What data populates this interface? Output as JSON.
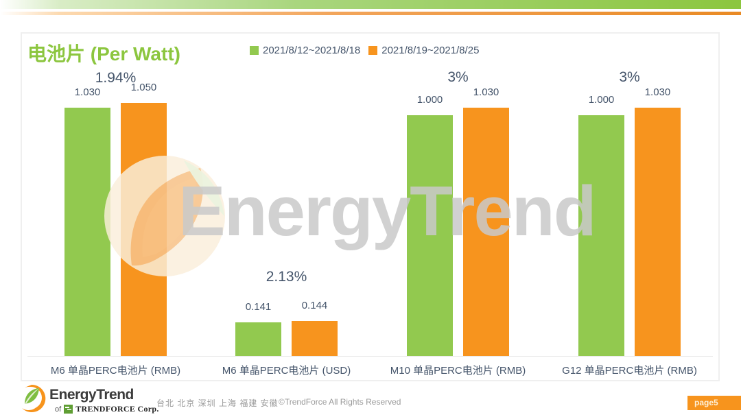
{
  "header": {
    "title": "电池片 (Per Watt)"
  },
  "legend": [
    {
      "label": "2021/8/12~2021/8/18",
      "color": "#92c94f"
    },
    {
      "label": "2021/8/19~2021/8/25",
      "color": "#f7941e"
    }
  ],
  "chart_data": {
    "type": "bar",
    "title": "电池片 (Per Watt)",
    "categories": [
      "M6 单晶PERC电池片 (RMB)",
      "M6 单晶PERC电池片 (USD)",
      "M10 单晶PERC电池片 (RMB)",
      "G12 单晶PERC电池片 (RMB)"
    ],
    "series": [
      {
        "name": "2021/8/12~2021/8/18",
        "color": "#92c94f",
        "values": [
          1.03,
          0.141,
          1.0,
          1.0
        ]
      },
      {
        "name": "2021/8/19~2021/8/25",
        "color": "#f7941e",
        "values": [
          1.05,
          0.144,
          1.03,
          1.03
        ]
      }
    ],
    "value_labels": [
      [
        "1.030",
        "0.141",
        "1.000",
        "1.000"
      ],
      [
        "1.050",
        "0.144",
        "1.030",
        "1.030"
      ]
    ],
    "change_labels": [
      "1.94%",
      "2.13%",
      "3%",
      "3%"
    ],
    "ylim": [
      0,
      1.1
    ],
    "grid": false,
    "legend_position": "top"
  },
  "watermark": {
    "text": "EnergyTrend"
  },
  "footer": {
    "logo_text": "EnergyTrend",
    "logo_of": "of",
    "logo_corp": "TRENDFORCE Corp.",
    "locations": "台北 北京 深圳 上海 福建 安徽",
    "copyright": "©TrendForce All Rights Reserved",
    "page_label": "page5"
  },
  "colors": {
    "title_green": "#8cc63f",
    "bar_green": "#92c94f",
    "bar_orange": "#f7941e",
    "label_text": "#44546a",
    "watermark_gray": "#cacaca",
    "badge_orange": "#f7941d"
  }
}
